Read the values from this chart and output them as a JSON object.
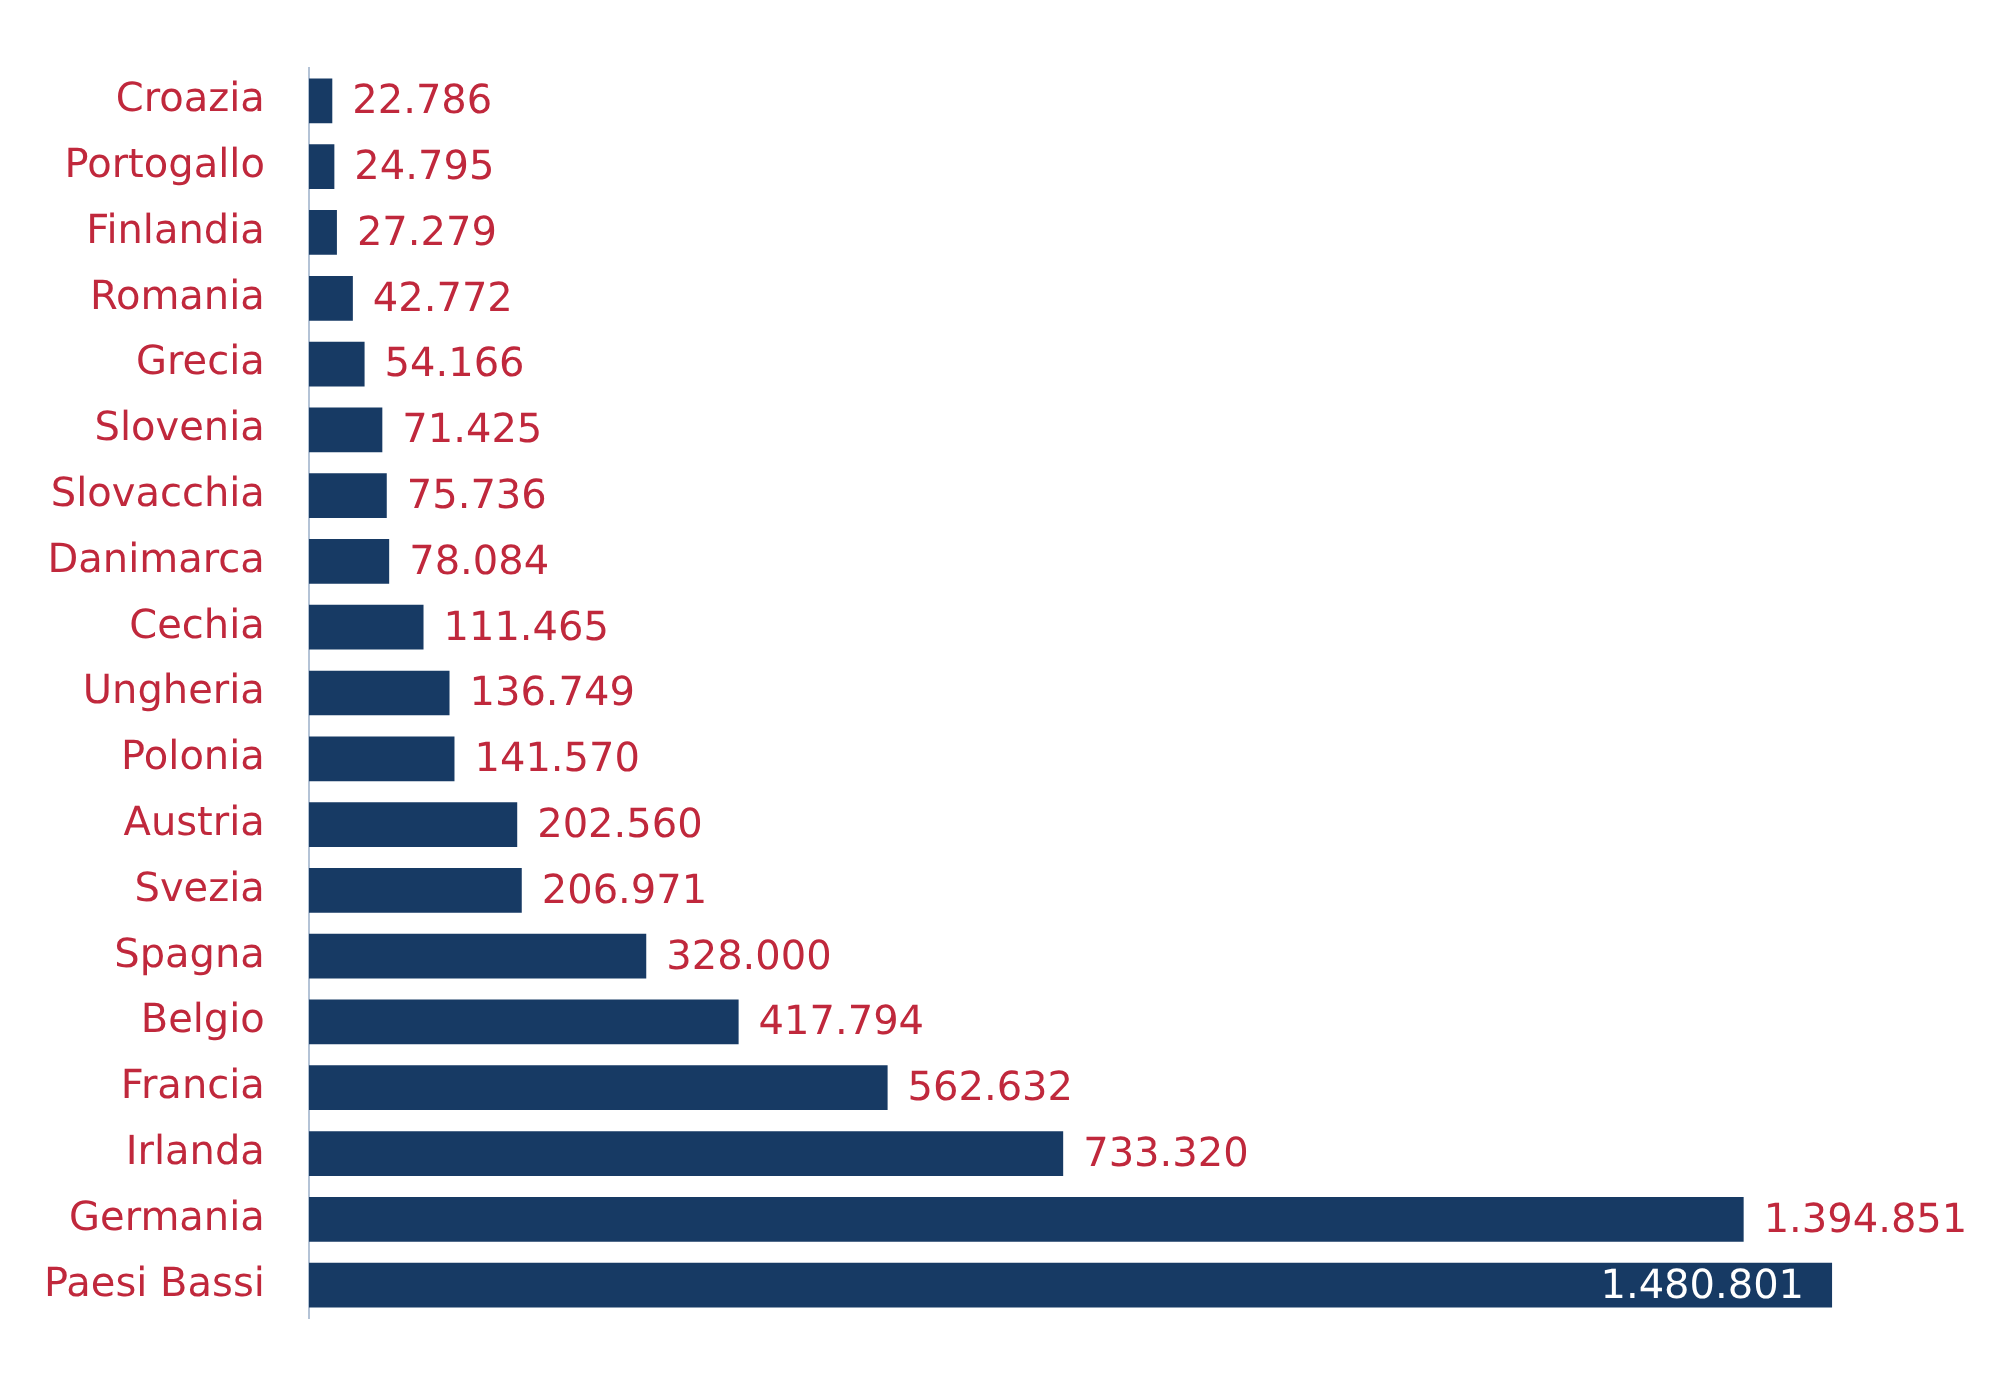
{
  "chart_data": {
    "type": "bar",
    "orientation": "horizontal",
    "categories": [
      "Croazia",
      "Portogallo",
      "Finlandia",
      "Romania",
      "Grecia",
      "Slovenia",
      "Slovacchia",
      "Danimarca",
      "Cechia",
      "Ungheria",
      "Polonia",
      "Austria",
      "Svezia",
      "Spagna",
      "Belgio",
      "Francia",
      "Irlanda",
      "Germania",
      "Paesi Bassi"
    ],
    "values": [
      22786,
      24795,
      27279,
      42772,
      54166,
      71425,
      75736,
      78084,
      111465,
      136749,
      141570,
      202560,
      206971,
      328000,
      417794,
      562632,
      733320,
      1394851,
      1480801
    ],
    "value_labels": [
      "22.786",
      "24.795",
      "27.279",
      "42.772",
      "54.166",
      "71.425",
      "75.736",
      "78.084",
      "111.465",
      "136.749",
      "141.570",
      "202.560",
      "206.971",
      "328.000",
      "417.794",
      "562.632",
      "733.320",
      "1.394.851",
      "1.480.801"
    ],
    "color": "#173a64",
    "tick_labels": "y",
    "grid": false,
    "legend": false
  }
}
